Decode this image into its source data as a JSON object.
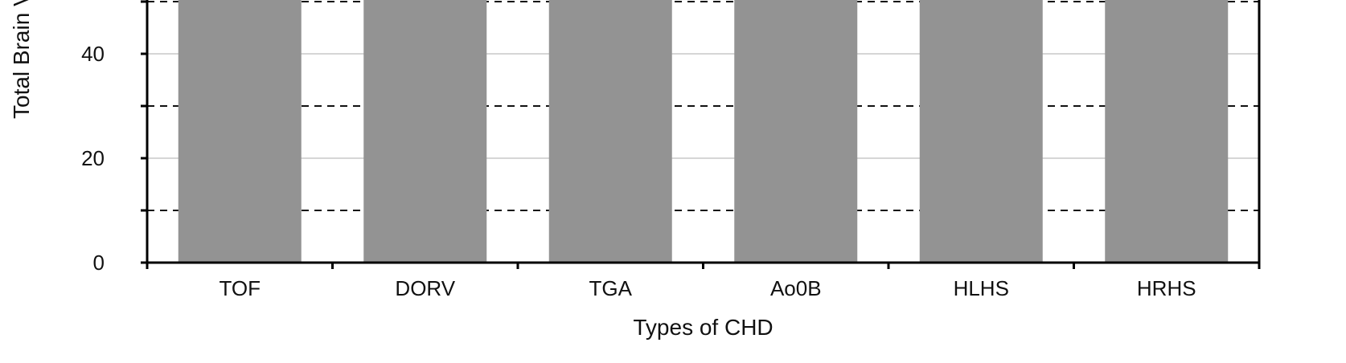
{
  "chart_data": {
    "type": "bar",
    "categories": [
      "TOF",
      "DORV",
      "TGA",
      "Ao0B",
      "HLHS",
      "HRHS"
    ],
    "values": [
      50,
      50,
      50,
      50,
      50,
      50
    ],
    "xlabel": "Types of CHD",
    "ylabel": "Total Brain V",
    "ylim": [
      0,
      50
    ],
    "yticks": [
      0,
      20,
      40
    ],
    "grid_minor_dashed": [
      10,
      30,
      50
    ],
    "grid_major_solid": [
      20,
      40
    ],
    "colors": {
      "bar": "#939393",
      "axis": "#000000",
      "grid_solid": "#c8c8c8",
      "grid_dashed": "#111111"
    }
  }
}
